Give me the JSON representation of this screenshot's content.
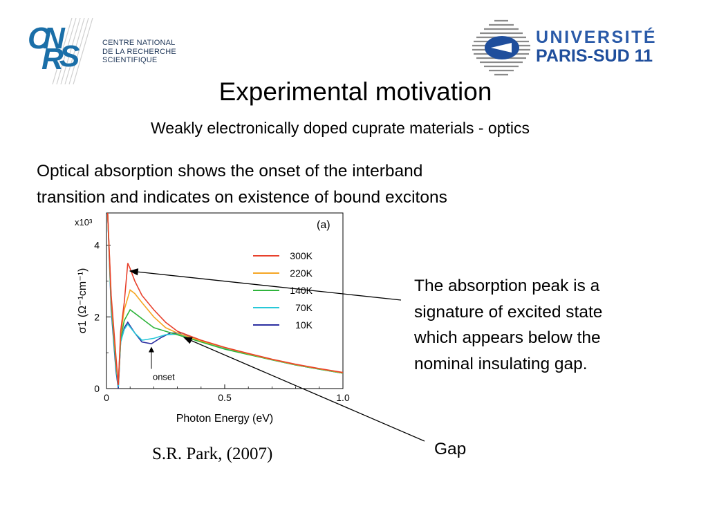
{
  "logos": {
    "cnrs": {
      "mark": "CNRS",
      "lines": [
        "CENTRE NATIONAL",
        "DE LA RECHERCHE",
        "SCIENTIFIQUE"
      ]
    },
    "university": {
      "line1": "UNIVERSITÉ",
      "line2": "PARIS-SUD 11"
    }
  },
  "title": "Experimental motivation",
  "subtitle": "Weakly electronically doped cuprate materials - optics",
  "intro_lines": [
    "Optical absorption shows the onset of the interband",
    "transition and indicates on existence of bound excitons"
  ],
  "side_note_lines": [
    "The absorption peak is a",
    "signature of excited state",
    "which appears below the",
    "nominal insulating gap."
  ],
  "gap_label": "Gap",
  "citation": "S.R. Park, (2007)",
  "chart_data": {
    "type": "line",
    "panel_label": "(a)",
    "xlabel": "Photon Energy (eV)",
    "ylabel": "σ1 (Ω⁻¹cm⁻¹)",
    "y_multiplier": "x10³",
    "xlim": [
      0,
      1.0
    ],
    "ylim": [
      0,
      4.9
    ],
    "xticks": [
      {
        "value": 0,
        "label": "0"
      },
      {
        "value": 0.5,
        "label": "0.5"
      },
      {
        "value": 1.0,
        "label": "1.0"
      }
    ],
    "yticks": [
      {
        "value": 0,
        "label": "0"
      },
      {
        "value": 2,
        "label": "2"
      },
      {
        "value": 4,
        "label": "4"
      }
    ],
    "annotation": "onset",
    "legend_position": "top-right",
    "series": [
      {
        "name": "300K",
        "color": "#e8412c",
        "points": [
          [
            0.005,
            4.9
          ],
          [
            0.02,
            2.6
          ],
          [
            0.04,
            0.9
          ],
          [
            0.05,
            0.1
          ],
          [
            0.06,
            1.6
          ],
          [
            0.075,
            2.4
          ],
          [
            0.09,
            3.5
          ],
          [
            0.1,
            3.35
          ],
          [
            0.12,
            3.0
          ],
          [
            0.15,
            2.6
          ],
          [
            0.2,
            2.2
          ],
          [
            0.25,
            1.85
          ],
          [
            0.3,
            1.6
          ],
          [
            0.4,
            1.35
          ],
          [
            0.5,
            1.15
          ],
          [
            0.6,
            0.98
          ],
          [
            0.7,
            0.82
          ],
          [
            0.8,
            0.68
          ],
          [
            0.9,
            0.56
          ],
          [
            1.0,
            0.45
          ]
        ]
      },
      {
        "name": "220K",
        "color": "#f5a623",
        "points": [
          [
            0.005,
            4.9
          ],
          [
            0.02,
            2.5
          ],
          [
            0.04,
            0.8
          ],
          [
            0.05,
            0.1
          ],
          [
            0.06,
            1.5
          ],
          [
            0.075,
            2.2
          ],
          [
            0.1,
            2.75
          ],
          [
            0.12,
            2.65
          ],
          [
            0.15,
            2.4
          ],
          [
            0.2,
            2.0
          ],
          [
            0.25,
            1.7
          ],
          [
            0.3,
            1.55
          ],
          [
            0.4,
            1.33
          ],
          [
            0.5,
            1.14
          ],
          [
            0.6,
            0.97
          ],
          [
            0.7,
            0.81
          ],
          [
            0.8,
            0.67
          ],
          [
            0.9,
            0.55
          ],
          [
            1.0,
            0.44
          ]
        ]
      },
      {
        "name": "140K",
        "color": "#2fb43c",
        "points": [
          [
            0.005,
            4.9
          ],
          [
            0.02,
            2.4
          ],
          [
            0.04,
            0.7
          ],
          [
            0.05,
            0.1
          ],
          [
            0.06,
            1.4
          ],
          [
            0.075,
            1.9
          ],
          [
            0.1,
            2.2
          ],
          [
            0.13,
            2.05
          ],
          [
            0.17,
            1.85
          ],
          [
            0.2,
            1.7
          ],
          [
            0.25,
            1.6
          ],
          [
            0.3,
            1.5
          ],
          [
            0.4,
            1.3
          ],
          [
            0.5,
            1.1
          ],
          [
            0.6,
            0.95
          ],
          [
            0.7,
            0.8
          ],
          [
            0.8,
            0.66
          ],
          [
            0.9,
            0.54
          ],
          [
            1.0,
            0.43
          ]
        ]
      },
      {
        "name": "70K",
        "color": "#27c8d8",
        "points": [
          [
            0.005,
            4.9
          ],
          [
            0.02,
            2.3
          ],
          [
            0.04,
            0.6
          ],
          [
            0.05,
            0.05
          ],
          [
            0.06,
            1.3
          ],
          [
            0.075,
            1.65
          ],
          [
            0.09,
            1.8
          ],
          [
            0.12,
            1.55
          ],
          [
            0.15,
            1.35
          ],
          [
            0.2,
            1.4
          ],
          [
            0.25,
            1.5
          ],
          [
            0.3,
            1.52
          ],
          [
            0.4,
            1.32
          ],
          [
            0.5,
            1.12
          ],
          [
            0.6,
            0.96
          ],
          [
            0.7,
            0.8
          ],
          [
            0.8,
            0.66
          ],
          [
            0.9,
            0.54
          ],
          [
            1.0,
            0.43
          ]
        ]
      },
      {
        "name": "10K",
        "color": "#2b2ea0",
        "points": [
          [
            0.005,
            4.9
          ],
          [
            0.02,
            2.2
          ],
          [
            0.04,
            0.5
          ],
          [
            0.05,
            0.0
          ],
          [
            0.06,
            1.3
          ],
          [
            0.075,
            1.7
          ],
          [
            0.09,
            1.85
          ],
          [
            0.12,
            1.55
          ],
          [
            0.15,
            1.3
          ],
          [
            0.19,
            1.25
          ],
          [
            0.23,
            1.42
          ],
          [
            0.27,
            1.55
          ],
          [
            0.32,
            1.55
          ],
          [
            0.4,
            1.33
          ],
          [
            0.5,
            1.13
          ],
          [
            0.6,
            0.96
          ],
          [
            0.7,
            0.8
          ],
          [
            0.8,
            0.66
          ],
          [
            0.9,
            0.54
          ],
          [
            1.0,
            0.43
          ]
        ]
      }
    ]
  }
}
